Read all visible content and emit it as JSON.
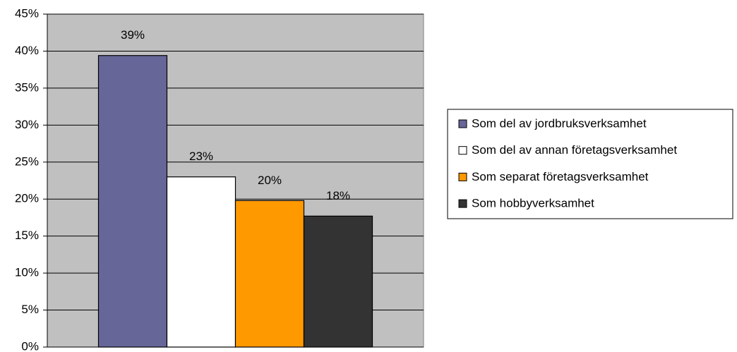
{
  "chart_data": {
    "type": "bar",
    "series": [
      {
        "name": "Som del av jordbruksverksamhet",
        "color": "#666699",
        "values": [
          39.4
        ],
        "value_labels": [
          "39%"
        ]
      },
      {
        "name": "Som del av annan företagsverksamhet",
        "color": "#ffffff",
        "values": [
          23.0
        ],
        "value_labels": [
          "23%"
        ]
      },
      {
        "name": "Som separat företagsverksamhet",
        "color": "#ff9900",
        "values": [
          19.8
        ],
        "value_labels": [
          "20%"
        ]
      },
      {
        "name": "Som hobbyverksamhet",
        "color": "#333333",
        "values": [
          17.7
        ],
        "value_labels": [
          "18%"
        ]
      }
    ],
    "ylim": [
      0,
      45
    ],
    "yticks": [
      {
        "value": 0,
        "label": "0%"
      },
      {
        "value": 5,
        "label": "5%"
      },
      {
        "value": 10,
        "label": "10%"
      },
      {
        "value": 15,
        "label": "15%"
      },
      {
        "value": 20,
        "label": "20%"
      },
      {
        "value": 25,
        "label": "25%"
      },
      {
        "value": 30,
        "label": "30%"
      },
      {
        "value": 35,
        "label": "35%"
      },
      {
        "value": 40,
        "label": "40%"
      },
      {
        "value": 45,
        "label": "45%"
      }
    ],
    "grid": true,
    "plot_background": "#c0c0c0",
    "legend": "right"
  }
}
